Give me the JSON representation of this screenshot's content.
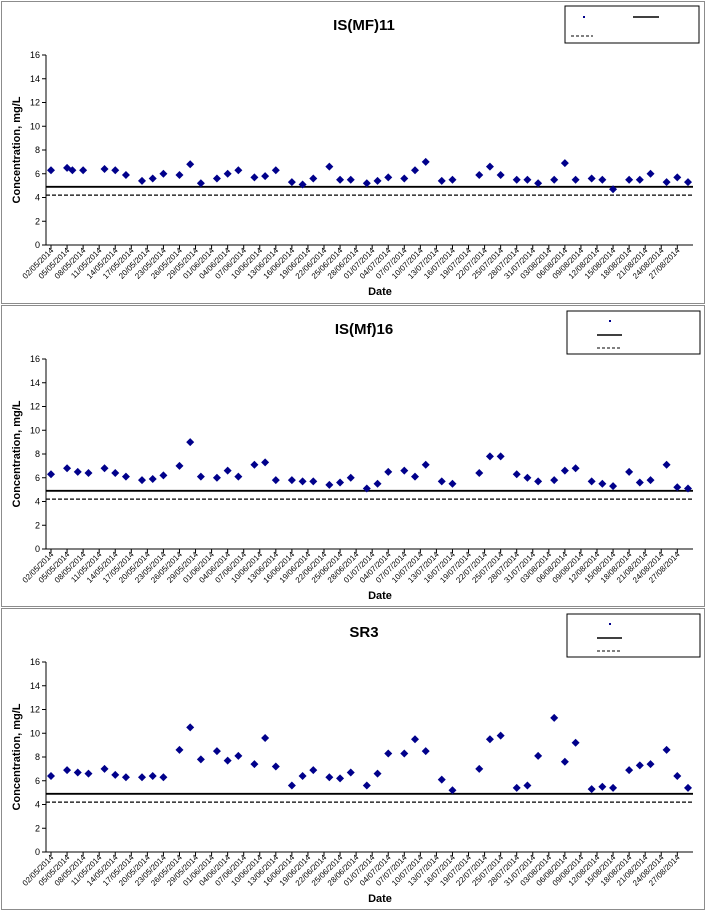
{
  "chart_data": [
    {
      "type": "scatter",
      "title": "IS(MF)11",
      "xlabel": "Date",
      "ylabel": "Concentration, mg/L",
      "ylim": [
        0,
        16
      ],
      "yticks": [
        "0",
        "2",
        "4",
        "6",
        "8",
        "10",
        "12",
        "14",
        "16"
      ],
      "grid": false,
      "legend_position": "top-right",
      "xticks": [
        "02/05/2014",
        "05/05/2014",
        "08/05/2014",
        "11/05/2014",
        "14/05/2014",
        "17/05/2014",
        "20/05/2014",
        "23/05/2014",
        "26/05/2014",
        "29/05/2014",
        "01/06/2014",
        "04/06/2014",
        "07/06/2014",
        "10/06/2014",
        "13/06/2014",
        "16/06/2014",
        "19/06/2014",
        "22/06/2014",
        "25/06/2014",
        "28/06/2014",
        "01/07/2014",
        "04/07/2014",
        "07/07/2014",
        "10/07/2014",
        "13/07/2014",
        "16/07/2014",
        "19/07/2014",
        "22/07/2014",
        "25/07/2014",
        "28/07/2014",
        "31/07/2014",
        "03/08/2014",
        "06/08/2014",
        "09/08/2014",
        "12/08/2014",
        "15/08/2014",
        "18/08/2014",
        "21/08/2014",
        "24/08/2014",
        "27/08/2014"
      ],
      "x_range": [
        "02/05/2014",
        "29/08/2014"
      ],
      "points": {
        "x": [
          "02/05/2014",
          "05/05/2014",
          "06/05/2014",
          "08/05/2014",
          "12/05/2014",
          "14/05/2014",
          "16/05/2014",
          "19/05/2014",
          "21/05/2014",
          "23/05/2014",
          "26/05/2014",
          "28/05/2014",
          "30/05/2014",
          "02/06/2014",
          "04/06/2014",
          "06/06/2014",
          "09/06/2014",
          "11/06/2014",
          "13/06/2014",
          "16/06/2014",
          "18/06/2014",
          "20/06/2014",
          "23/06/2014",
          "25/06/2014",
          "27/06/2014",
          "30/06/2014",
          "02/07/2014",
          "04/07/2014",
          "07/07/2014",
          "09/07/2014",
          "11/07/2014",
          "14/07/2014",
          "16/07/2014",
          "21/07/2014",
          "23/07/2014",
          "25/07/2014",
          "28/07/2014",
          "30/07/2014",
          "01/08/2014",
          "04/08/2014",
          "06/08/2014",
          "08/08/2014",
          "11/08/2014",
          "13/08/2014",
          "15/08/2014",
          "18/08/2014",
          "20/08/2014",
          "22/08/2014",
          "25/08/2014",
          "27/08/2014",
          "29/08/2014"
        ],
        "y": [
          6.3,
          6.5,
          6.3,
          6.3,
          6.4,
          6.3,
          5.9,
          5.4,
          5.6,
          6.0,
          5.9,
          6.8,
          5.2,
          5.6,
          6.0,
          6.3,
          5.7,
          5.8,
          6.3,
          5.3,
          5.1,
          5.6,
          6.6,
          5.5,
          5.5,
          5.2,
          5.4,
          5.7,
          5.6,
          6.3,
          7.0,
          5.4,
          5.5,
          5.9,
          6.6,
          5.9,
          5.5,
          5.5,
          5.2,
          5.5,
          6.9,
          5.5,
          5.6,
          5.5,
          4.7,
          5.5,
          5.5,
          6.0,
          5.3,
          5.7,
          5.3
        ]
      },
      "solid_line": 4.9,
      "dashed_line": 4.2
    },
    {
      "type": "scatter",
      "title": "IS(Mf)16",
      "xlabel": "Date",
      "ylabel": "Concentration, mg/L",
      "ylim": [
        0,
        16
      ],
      "yticks": [
        "0",
        "2",
        "4",
        "6",
        "8",
        "10",
        "12",
        "14",
        "16"
      ],
      "grid": false,
      "legend_position": "top-right",
      "xticks": [
        "02/05/2014",
        "05/05/2014",
        "08/05/2014",
        "11/05/2014",
        "14/05/2014",
        "17/05/2014",
        "20/05/2014",
        "23/05/2014",
        "26/05/2014",
        "29/05/2014",
        "01/06/2014",
        "04/06/2014",
        "07/06/2014",
        "10/06/2014",
        "13/06/2014",
        "16/06/2014",
        "19/06/2014",
        "22/06/2014",
        "25/06/2014",
        "28/06/2014",
        "01/07/2014",
        "04/07/2014",
        "07/07/2014",
        "10/07/2014",
        "13/07/2014",
        "16/07/2014",
        "19/07/2014",
        "22/07/2014",
        "25/07/2014",
        "28/07/2014",
        "31/07/2014",
        "03/08/2014",
        "06/08/2014",
        "09/08/2014",
        "12/08/2014",
        "15/08/2014",
        "18/08/2014",
        "21/08/2014",
        "24/08/2014",
        "27/08/2014"
      ],
      "x_range": [
        "02/05/2014",
        "29/08/2014"
      ],
      "points": {
        "x": [
          "02/05/2014",
          "05/05/2014",
          "07/05/2014",
          "09/05/2014",
          "12/05/2014",
          "14/05/2014",
          "16/05/2014",
          "19/05/2014",
          "21/05/2014",
          "23/05/2014",
          "26/05/2014",
          "28/05/2014",
          "30/05/2014",
          "02/06/2014",
          "04/06/2014",
          "06/06/2014",
          "09/06/2014",
          "11/06/2014",
          "13/06/2014",
          "16/06/2014",
          "18/06/2014",
          "20/06/2014",
          "23/06/2014",
          "25/06/2014",
          "27/06/2014",
          "30/06/2014",
          "02/07/2014",
          "04/07/2014",
          "07/07/2014",
          "09/07/2014",
          "11/07/2014",
          "14/07/2014",
          "16/07/2014",
          "21/07/2014",
          "23/07/2014",
          "25/07/2014",
          "28/07/2014",
          "30/07/2014",
          "01/08/2014",
          "04/08/2014",
          "06/08/2014",
          "08/08/2014",
          "11/08/2014",
          "13/08/2014",
          "15/08/2014",
          "18/08/2014",
          "20/08/2014",
          "22/08/2014",
          "25/08/2014",
          "27/08/2014",
          "29/08/2014"
        ],
        "y": [
          6.3,
          6.8,
          6.5,
          6.4,
          6.8,
          6.4,
          6.1,
          5.8,
          5.9,
          6.2,
          7.0,
          9.0,
          6.1,
          6.0,
          6.6,
          6.1,
          7.1,
          7.3,
          5.8,
          5.8,
          5.7,
          5.7,
          5.4,
          5.6,
          6.0,
          5.1,
          5.5,
          6.5,
          6.6,
          6.1,
          7.1,
          5.7,
          5.5,
          6.4,
          7.8,
          7.8,
          6.3,
          6.0,
          5.7,
          5.8,
          6.6,
          6.8,
          5.7,
          5.5,
          5.3,
          6.5,
          5.6,
          5.8,
          7.1,
          5.2,
          5.1
        ]
      },
      "solid_line": 4.9,
      "dashed_line": 4.2
    },
    {
      "type": "scatter",
      "title": "SR3",
      "xlabel": "Date",
      "ylabel": "Concentration, mg/L",
      "ylim": [
        0,
        16
      ],
      "yticks": [
        "0",
        "2",
        "4",
        "6",
        "8",
        "10",
        "12",
        "14",
        "16"
      ],
      "grid": false,
      "legend_position": "top-right",
      "xticks": [
        "02/05/2014",
        "05/05/2014",
        "08/05/2014",
        "11/05/2014",
        "14/05/2014",
        "17/05/2014",
        "20/05/2014",
        "23/05/2014",
        "26/05/2014",
        "29/05/2014",
        "01/06/2014",
        "04/06/2014",
        "07/06/2014",
        "10/06/2014",
        "13/06/2014",
        "16/06/2014",
        "19/06/2014",
        "22/06/2014",
        "25/06/2014",
        "28/06/2014",
        "01/07/2014",
        "04/07/2014",
        "07/07/2014",
        "10/07/2014",
        "13/07/2014",
        "16/07/2014",
        "19/07/2014",
        "22/07/2014",
        "25/07/2014",
        "28/07/2014",
        "31/07/2014",
        "03/08/2014",
        "06/08/2014",
        "09/08/2014",
        "12/08/2014",
        "15/08/2014",
        "18/08/2014",
        "21/08/2014",
        "24/08/2014",
        "27/08/2014"
      ],
      "x_range": [
        "02/05/2014",
        "29/08/2014"
      ],
      "points": {
        "x": [
          "02/05/2014",
          "05/05/2014",
          "07/05/2014",
          "09/05/2014",
          "12/05/2014",
          "14/05/2014",
          "16/05/2014",
          "19/05/2014",
          "21/05/2014",
          "23/05/2014",
          "26/05/2014",
          "28/05/2014",
          "30/05/2014",
          "02/06/2014",
          "04/06/2014",
          "06/06/2014",
          "09/06/2014",
          "11/06/2014",
          "13/06/2014",
          "16/06/2014",
          "18/06/2014",
          "20/06/2014",
          "23/06/2014",
          "25/06/2014",
          "27/06/2014",
          "30/06/2014",
          "02/07/2014",
          "04/07/2014",
          "07/07/2014",
          "09/07/2014",
          "11/07/2014",
          "14/07/2014",
          "16/07/2014",
          "21/07/2014",
          "23/07/2014",
          "25/07/2014",
          "28/07/2014",
          "30/07/2014",
          "01/08/2014",
          "04/08/2014",
          "06/08/2014",
          "08/08/2014",
          "11/08/2014",
          "13/08/2014",
          "15/08/2014",
          "18/08/2014",
          "20/08/2014",
          "22/08/2014",
          "25/08/2014",
          "27/08/2014",
          "29/08/2014"
        ],
        "y": [
          6.4,
          6.9,
          6.7,
          6.6,
          7.0,
          6.5,
          6.3,
          6.3,
          6.4,
          6.3,
          8.6,
          10.5,
          7.8,
          8.5,
          7.7,
          8.1,
          7.4,
          9.6,
          7.2,
          5.6,
          6.4,
          6.9,
          6.3,
          6.2,
          6.7,
          5.6,
          6.6,
          8.3,
          8.3,
          9.5,
          8.5,
          6.1,
          5.2,
          7.0,
          9.5,
          9.8,
          5.4,
          5.6,
          8.1,
          11.3,
          7.6,
          9.2,
          5.3,
          5.5,
          5.4,
          6.9,
          7.3,
          7.4,
          8.6,
          6.4,
          5.4
        ]
      },
      "solid_line": 4.9,
      "dashed_line": 4.2
    }
  ]
}
